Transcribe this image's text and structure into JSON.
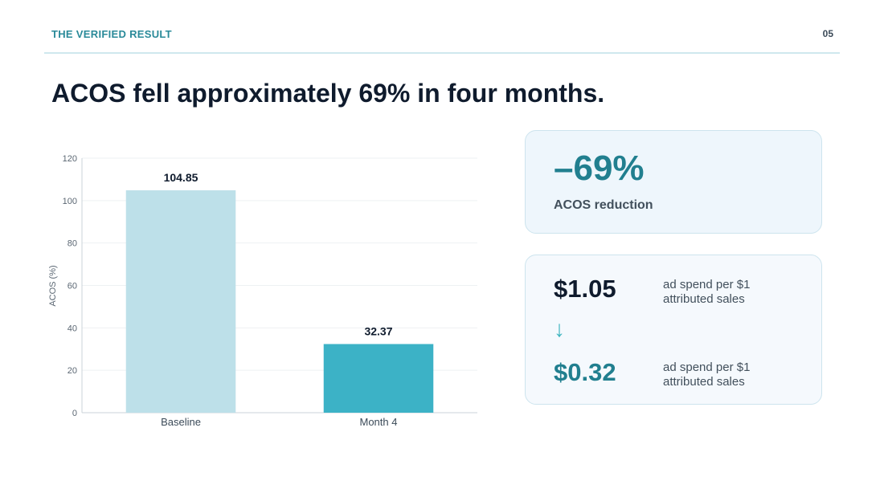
{
  "header": {
    "eyebrow": "THE VERIFIED RESULT",
    "page_number": "05"
  },
  "headline": "ACOS fell approximately 69% in four months.",
  "chart_data": {
    "type": "bar",
    "categories": [
      "Baseline",
      "Month 4"
    ],
    "values": [
      104.85,
      32.37
    ],
    "data_labels": [
      "104.85",
      "32.37"
    ],
    "ylabel": "ACOS (%)",
    "xlabel": "",
    "ylim": [
      0,
      120
    ],
    "yticks": [
      0,
      20,
      40,
      60,
      80,
      100,
      120
    ],
    "grid": true,
    "bar_colors": [
      "#bde0e9",
      "#3cb2c6"
    ]
  },
  "reduction_card": {
    "value": "–69%",
    "label": "ACOS reduction"
  },
  "spend_card": {
    "before_value": "$1.05",
    "before_desc": "ad spend per $1 attributed sales",
    "arrow": "↓",
    "after_value": "$0.32",
    "after_desc": "ad spend per $1 attributed sales"
  },
  "colors": {
    "accent": "#217f8f",
    "arrow": "#3fb5c0",
    "rule": "#cfe8ee"
  }
}
